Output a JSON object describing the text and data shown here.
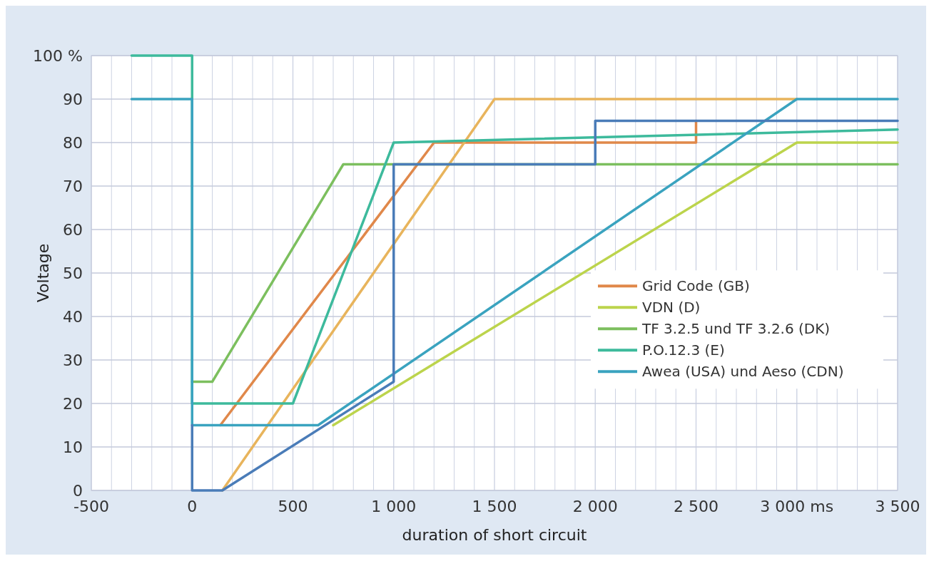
{
  "chart_data": {
    "type": "line",
    "xlabel": "duration of short circuit",
    "ylabel": "Voltage",
    "xlim": [
      -500,
      3500
    ],
    "ylim": [
      0,
      100
    ],
    "xticks": [
      -500,
      {
        "value": -400,
        "label": null
      },
      {
        "value": -300,
        "label": null
      },
      {
        "value": -200,
        "label": null
      },
      {
        "value": -100,
        "label": null
      },
      0,
      {
        "value": 100,
        "label": null
      },
      {
        "value": 200,
        "label": null
      },
      {
        "value": 300,
        "label": null
      },
      {
        "value": 400,
        "label": null
      },
      500,
      {
        "value": 600,
        "label": null
      },
      {
        "value": 700,
        "label": null
      },
      {
        "value": 800,
        "label": null
      },
      {
        "value": 900,
        "label": null
      },
      {
        "value": 1000,
        "label": "1 000"
      },
      {
        "value": 1100,
        "label": null
      },
      {
        "value": 1200,
        "label": null
      },
      {
        "value": 1300,
        "label": null
      },
      {
        "value": 1400,
        "label": null
      },
      {
        "value": 1500,
        "label": "1 500"
      },
      {
        "value": 1600,
        "label": null
      },
      {
        "value": 1700,
        "label": null
      },
      {
        "value": 1800,
        "label": null
      },
      {
        "value": 1900,
        "label": null
      },
      {
        "value": 2000,
        "label": "2 000"
      },
      {
        "value": 2100,
        "label": null
      },
      {
        "value": 2200,
        "label": null
      },
      {
        "value": 2300,
        "label": null
      },
      {
        "value": 2400,
        "label": null
      },
      {
        "value": 2500,
        "label": "2 500"
      },
      {
        "value": 2600,
        "label": null
      },
      {
        "value": 2700,
        "label": null
      },
      {
        "value": 2800,
        "label": null
      },
      {
        "value": 2900,
        "label": null
      },
      {
        "value": 3000,
        "label": "3 000 ms"
      },
      {
        "value": 3100,
        "label": null
      },
      {
        "value": 3200,
        "label": null
      },
      {
        "value": 3300,
        "label": null
      },
      {
        "value": 3400,
        "label": null
      },
      {
        "value": 3500,
        "label": "3 500"
      }
    ],
    "yticks": [
      0,
      10,
      20,
      30,
      40,
      50,
      60,
      70,
      80,
      90,
      {
        "value": 100,
        "label": "100 %"
      }
    ],
    "grid": true,
    "legend": "bottom right",
    "marker": "none",
    "line_style": "solid",
    "series": [
      {
        "name": "Grid Code (GB)",
        "color": "#e0884a",
        "x": [
          140,
          1200,
          2500,
          2500
        ],
        "values": [
          15,
          80,
          80,
          85
        ]
      },
      {
        "color": "#e8b45c",
        "x": [
          150,
          1500,
          3000
        ],
        "values": [
          0,
          90,
          90
        ]
      },
      {
        "name": "VDN (D)",
        "color": "#bcd44c",
        "x": [
          700,
          3000,
          3500
        ],
        "values": [
          15,
          80,
          80
        ]
      },
      {
        "name": "TF 3.2.5 und TF 3.2.6 (DK)",
        "color": "#7cbf5e",
        "x": [
          0,
          100,
          750,
          3500
        ],
        "values": [
          25,
          25,
          75,
          75
        ]
      },
      {
        "name": "P.O.12.3 (E)",
        "color": "#3dba9c",
        "x": [
          -300,
          0,
          0,
          500,
          1000,
          3500
        ],
        "values": [
          100,
          100,
          20,
          20,
          80,
          83
        ]
      },
      {
        "name": "Awea (USA) und Aeso (CDN)",
        "color": "#3aa3bf",
        "x": [
          -300,
          0,
          0,
          625,
          3000,
          3500
        ],
        "values": [
          90,
          90,
          15,
          15,
          90,
          90
        ]
      },
      {
        "color": "#4a7cb8",
        "x": [
          0,
          0,
          150,
          1000,
          1000,
          2000,
          2000,
          3500
        ],
        "values": [
          15,
          0,
          0,
          25,
          75,
          75,
          85,
          85
        ]
      }
    ]
  }
}
